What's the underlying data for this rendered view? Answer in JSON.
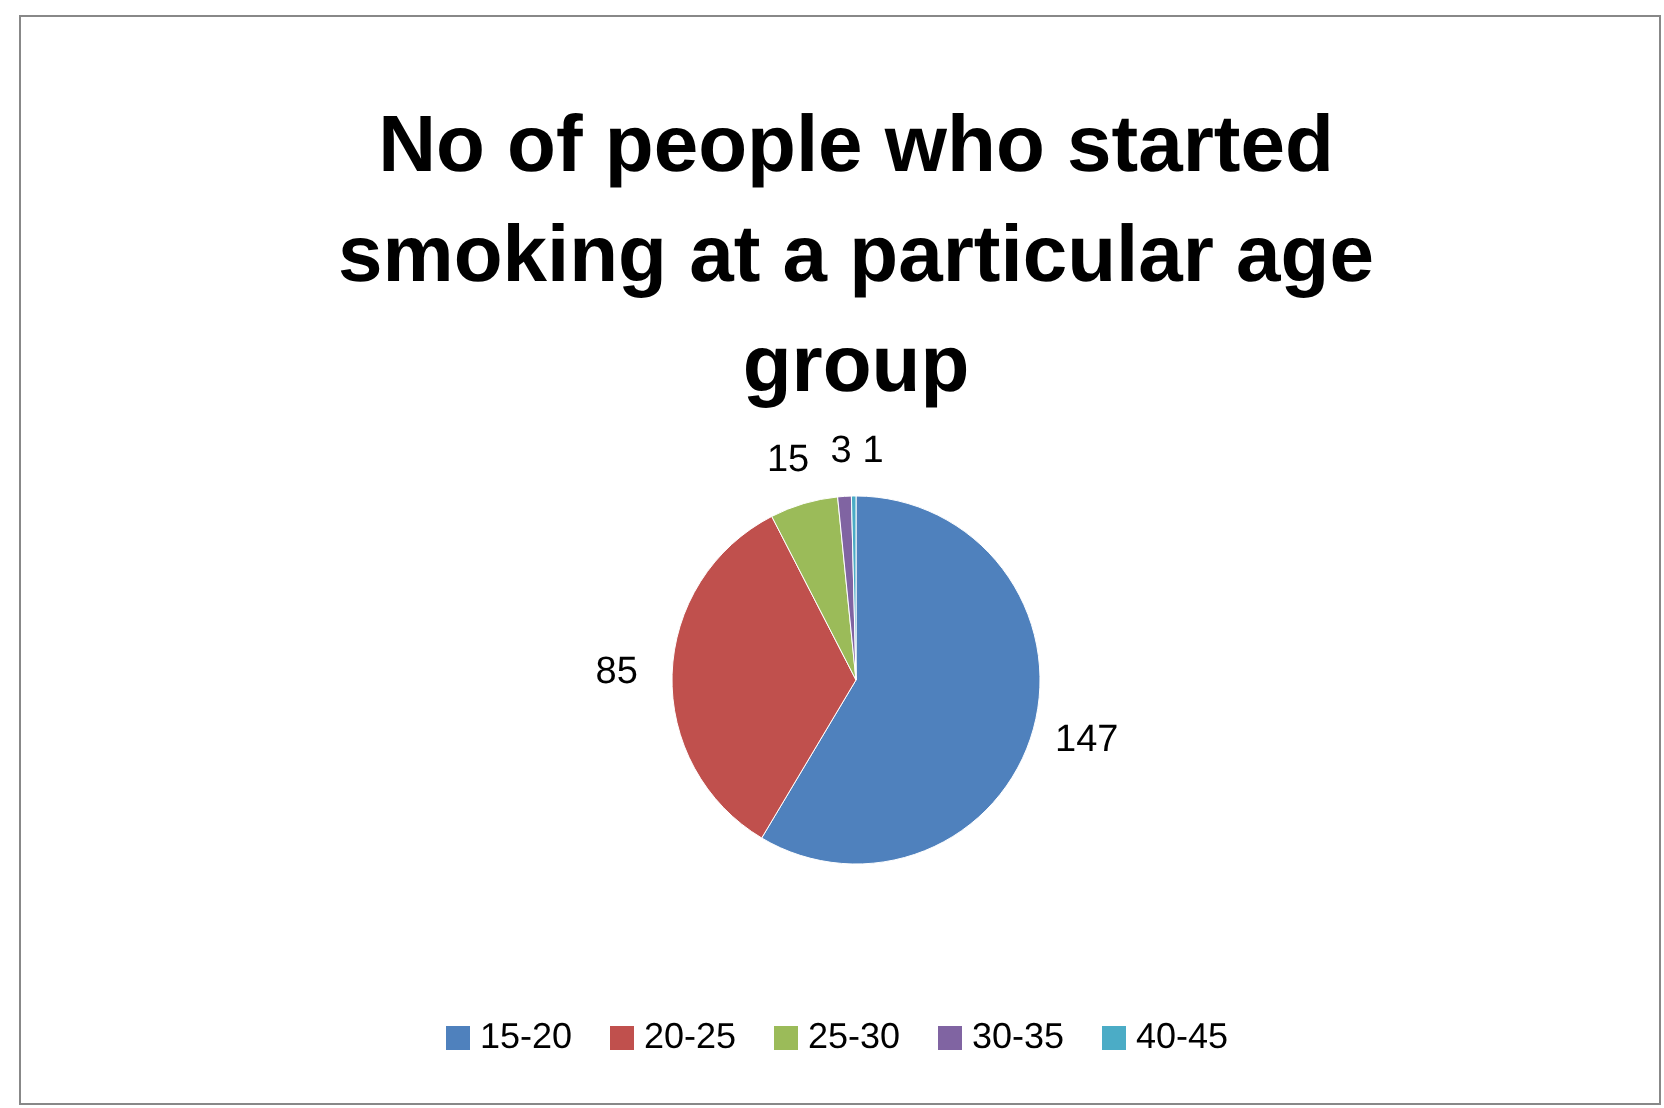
{
  "chart_data": {
    "type": "pie",
    "title": "No of people who started smoking at a particular age group",
    "categories": [
      "15-20",
      "20-25",
      "25-30",
      "30-35",
      "40-45"
    ],
    "values": [
      147,
      85,
      15,
      3,
      1
    ],
    "colors": [
      "#4f81bd",
      "#c0504d",
      "#9bbb59",
      "#8064a2",
      "#4bacc6"
    ],
    "data_labels": true,
    "legend": "bottom"
  }
}
